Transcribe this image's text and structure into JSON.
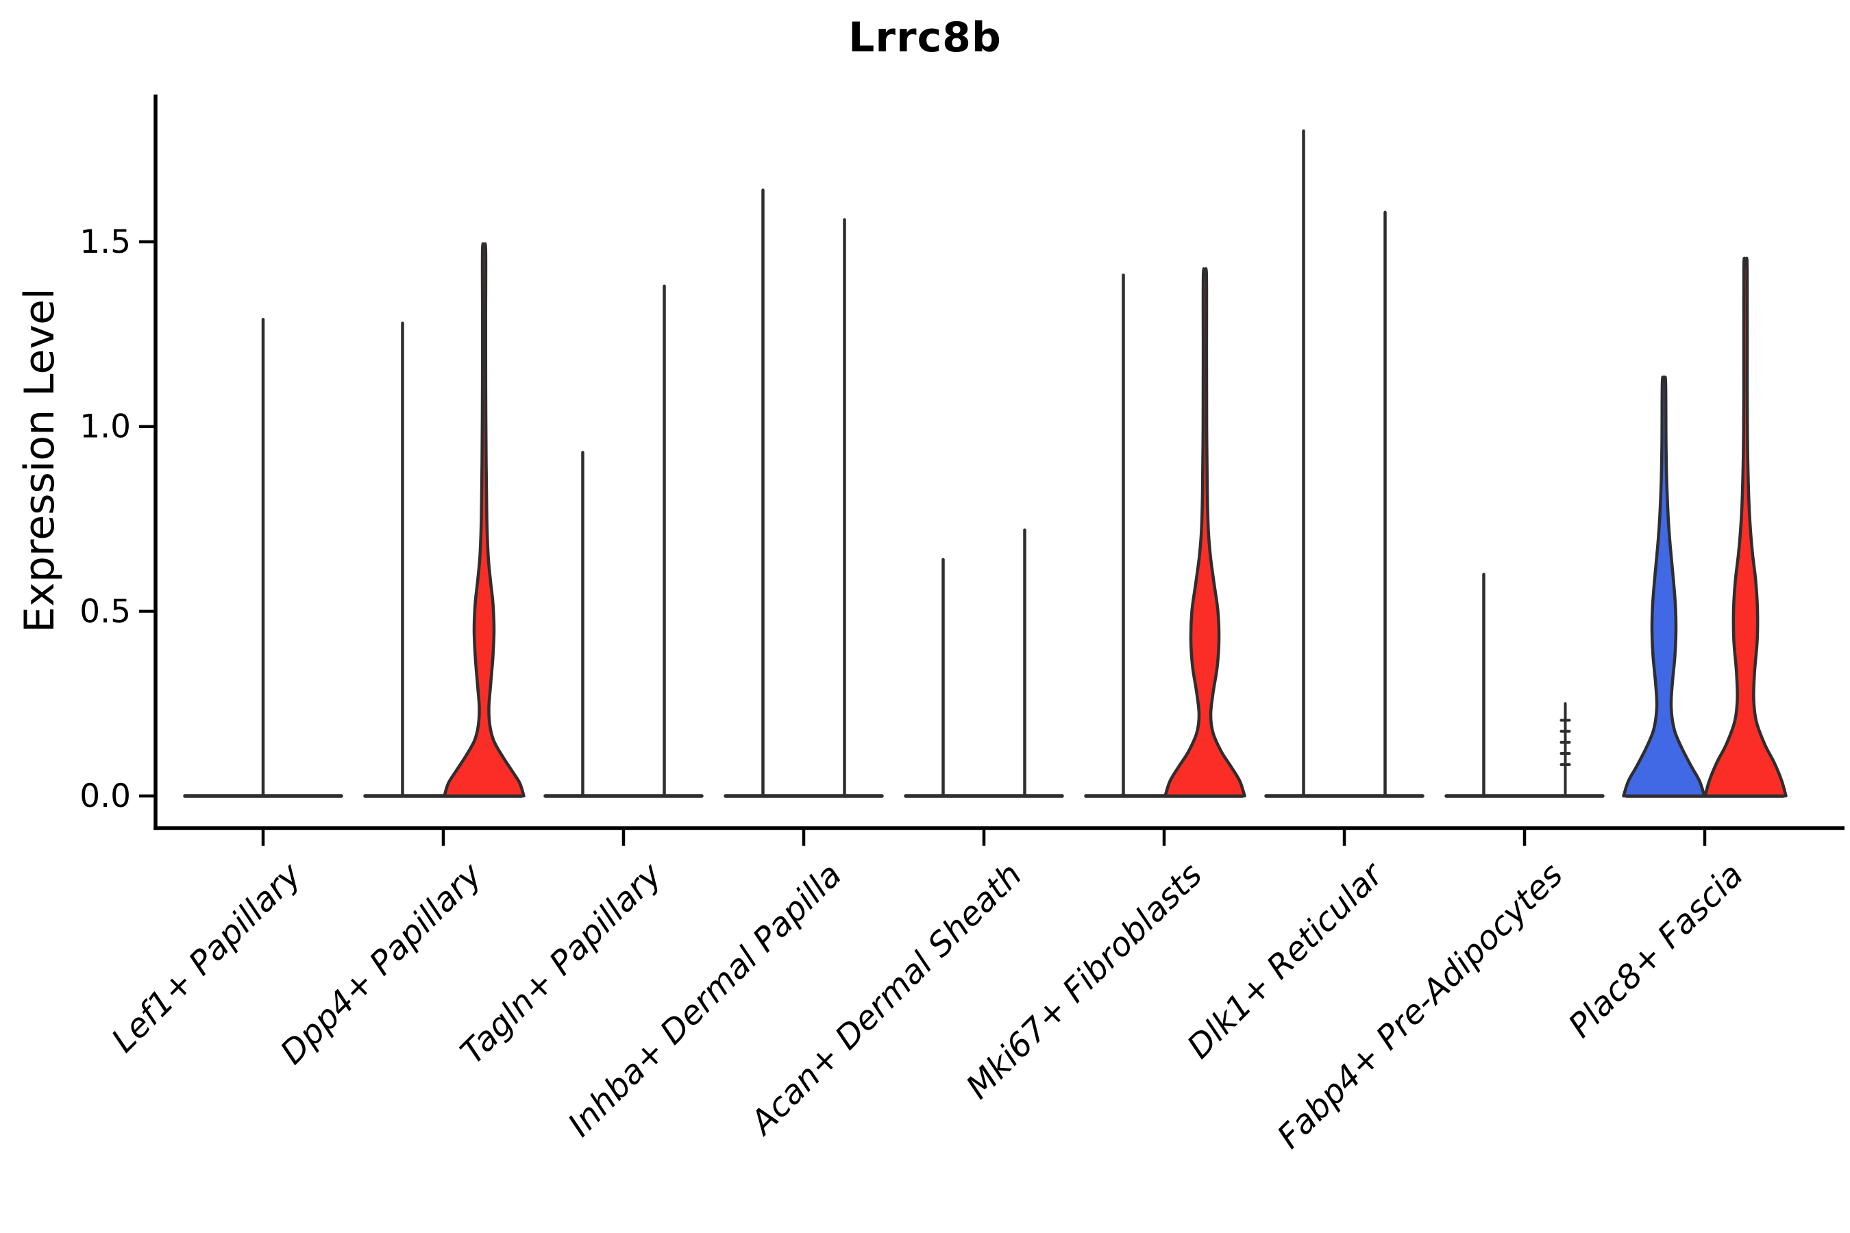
{
  "title": "Lrrc8b",
  "axes": {
    "ylabel": "Expression Level",
    "ytick_labels": [
      "0.0",
      "0.5",
      "1.0",
      "1.5"
    ],
    "ytick_values": [
      0.0,
      0.5,
      1.0,
      1.5
    ]
  },
  "chart_data": {
    "type": "violin",
    "title": "Lrrc8b",
    "ylabel": "Expression Level",
    "ylim": [
      -0.09,
      1.9
    ],
    "yticks": [
      0.0,
      0.5,
      1.0,
      1.5
    ],
    "grid": false,
    "legend": "none",
    "categories": [
      {
        "label": "Lef1+ Papillary",
        "violins": [
          {
            "pos": "center",
            "kind": "spike",
            "max": 1.29
          }
        ]
      },
      {
        "label": "Dpp4+ Papillary",
        "violins": [
          {
            "pos": "left",
            "kind": "spike",
            "max": 1.28
          },
          {
            "pos": "right",
            "kind": "filled",
            "color_key": "red",
            "max": 1.48,
            "profile_key": "dpp4_red"
          }
        ]
      },
      {
        "label": "Tagln+ Papillary",
        "violins": [
          {
            "pos": "left",
            "kind": "spike",
            "max": 0.93
          },
          {
            "pos": "right",
            "kind": "spike",
            "max": 1.38
          }
        ]
      },
      {
        "label": "Inhba+ Dermal Papilla",
        "violins": [
          {
            "pos": "left",
            "kind": "spike",
            "max": 1.64
          },
          {
            "pos": "right",
            "kind": "spike",
            "max": 1.56
          }
        ]
      },
      {
        "label": "Acan+ Dermal Sheath",
        "violins": [
          {
            "pos": "left",
            "kind": "spike",
            "max": 0.64
          },
          {
            "pos": "right",
            "kind": "spike",
            "max": 0.72
          }
        ]
      },
      {
        "label": "Mki67+ Fibroblasts",
        "violins": [
          {
            "pos": "left",
            "kind": "spike",
            "max": 1.41
          },
          {
            "pos": "right",
            "kind": "filled",
            "color_key": "red",
            "max": 1.41,
            "profile_key": "mki67_red"
          }
        ]
      },
      {
        "label": "Dlk1+ Reticular",
        "violins": [
          {
            "pos": "left",
            "kind": "spike",
            "max": 1.8
          },
          {
            "pos": "right",
            "kind": "spike",
            "max": 1.58
          }
        ]
      },
      {
        "label": "Fabp4+ Pre-Adipocytes",
        "violins": [
          {
            "pos": "left",
            "kind": "spike",
            "max": 0.6
          },
          {
            "pos": "right",
            "kind": "spike_dotted",
            "max": 0.25,
            "dashes": [
              0.085,
              0.115,
              0.145,
              0.175,
              0.205
            ]
          }
        ]
      },
      {
        "label": "Plac8+ Fascia",
        "violins": [
          {
            "pos": "left",
            "kind": "filled",
            "color_key": "blue",
            "max": 1.12,
            "profile_key": "plac8_blue"
          },
          {
            "pos": "right",
            "kind": "filled",
            "color_key": "red",
            "max": 1.43,
            "profile_key": "plac8_red"
          }
        ]
      }
    ],
    "profiles": {
      "dpp4_red": [
        [
          0,
          58
        ],
        [
          0.035,
          52
        ],
        [
          0.07,
          40
        ],
        [
          0.11,
          26
        ],
        [
          0.15,
          14
        ],
        [
          0.19,
          8.5
        ],
        [
          0.24,
          7
        ],
        [
          0.3,
          9.5
        ],
        [
          0.38,
          13
        ],
        [
          0.45,
          14.5
        ],
        [
          0.52,
          13
        ],
        [
          0.58,
          9.5
        ],
        [
          0.65,
          6
        ],
        [
          0.75,
          4
        ],
        [
          0.9,
          3
        ],
        [
          1.1,
          2.4
        ],
        [
          1.3,
          2.3
        ],
        [
          1.48,
          2.3
        ]
      ],
      "mki67_red": [
        [
          0,
          58
        ],
        [
          0.04,
          51
        ],
        [
          0.08,
          38
        ],
        [
          0.12,
          24
        ],
        [
          0.17,
          12
        ],
        [
          0.22,
          8.5
        ],
        [
          0.28,
          12
        ],
        [
          0.35,
          18
        ],
        [
          0.42,
          20.5
        ],
        [
          0.5,
          19
        ],
        [
          0.58,
          13
        ],
        [
          0.65,
          8
        ],
        [
          0.72,
          5
        ],
        [
          0.82,
          3.5
        ],
        [
          1.0,
          2.6
        ],
        [
          1.2,
          2.4
        ],
        [
          1.41,
          2.3
        ]
      ],
      "plac8_blue": [
        [
          0,
          59
        ],
        [
          0.04,
          52
        ],
        [
          0.08,
          40
        ],
        [
          0.13,
          26
        ],
        [
          0.18,
          15
        ],
        [
          0.24,
          10.5
        ],
        [
          0.3,
          12
        ],
        [
          0.38,
          16
        ],
        [
          0.45,
          17.5
        ],
        [
          0.52,
          16.5
        ],
        [
          0.6,
          13
        ],
        [
          0.68,
          9
        ],
        [
          0.76,
          6
        ],
        [
          0.85,
          4
        ],
        [
          0.95,
          3
        ],
        [
          1.12,
          2.4
        ]
      ],
      "plac8_red": [
        [
          0,
          59
        ],
        [
          0.04,
          53
        ],
        [
          0.09,
          42
        ],
        [
          0.14,
          28
        ],
        [
          0.2,
          16
        ],
        [
          0.26,
          12
        ],
        [
          0.33,
          13
        ],
        [
          0.42,
          17
        ],
        [
          0.5,
          17.5
        ],
        [
          0.58,
          15
        ],
        [
          0.66,
          10
        ],
        [
          0.74,
          6.5
        ],
        [
          0.82,
          4.5
        ],
        [
          0.95,
          3
        ],
        [
          1.1,
          2.5
        ],
        [
          1.43,
          2.4
        ]
      ]
    },
    "colors": {
      "red": "#fa2e26",
      "blue": "#4169e6",
      "outline": "#2e2e2e",
      "axis": "#000000"
    }
  }
}
